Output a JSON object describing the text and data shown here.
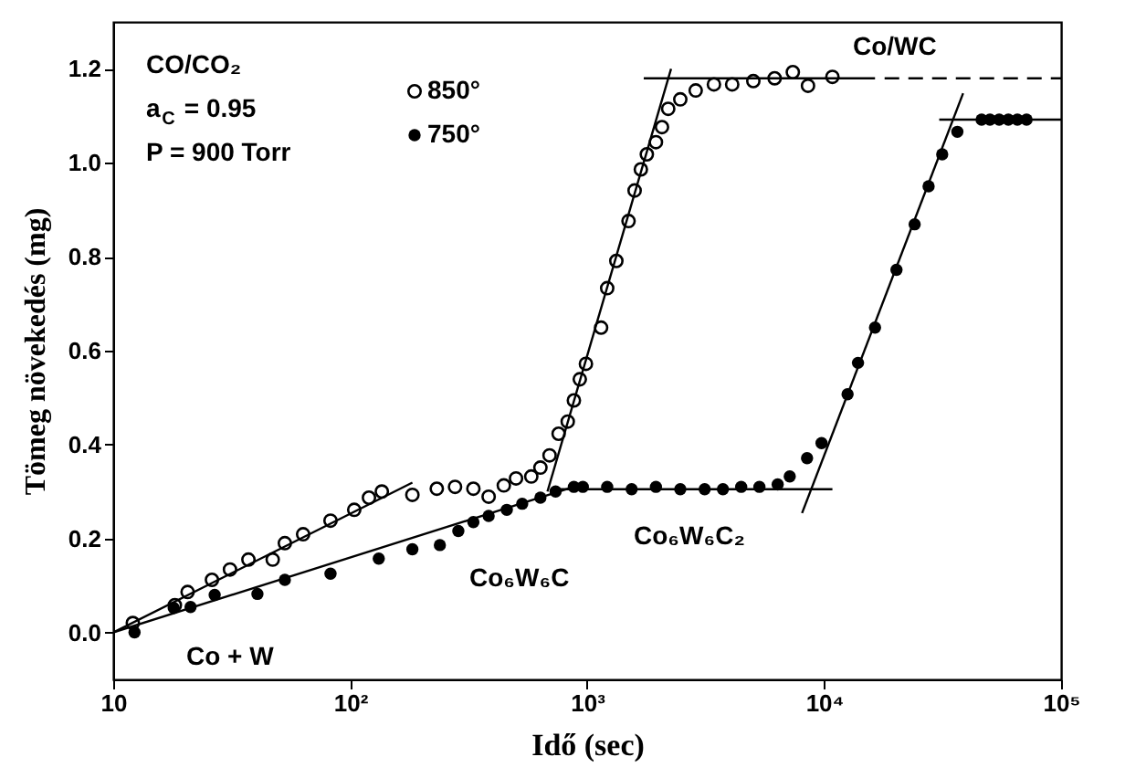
{
  "chart_data": {
    "type": "scatter",
    "xlabel": "Idő (sec)",
    "ylabel": "Tömeg növekedés (mg)",
    "log": "x",
    "grid": false,
    "legend": "top left",
    "xlim": [
      10,
      100000
    ],
    "xticks": [
      10,
      {
        "value": 100,
        "label": "10²"
      },
      {
        "value": 1000,
        "label": "10³"
      },
      {
        "value": 10000,
        "label": "10⁴"
      },
      {
        "value": 100000,
        "label": "10⁵"
      }
    ],
    "ylim": [
      -0.1,
      1.3
    ],
    "yticks": [
      {
        "value": 0,
        "label": "0.0"
      },
      {
        "value": 0.2,
        "label": "0.2"
      },
      {
        "value": 0.4,
        "label": "0.4"
      },
      {
        "value": 0.6,
        "label": "0.6"
      },
      {
        "value": 0.8,
        "label": "0.8"
      },
      {
        "value": 1.0,
        "label": "1.0"
      },
      {
        "value": 1.2,
        "label": "1.2"
      }
    ],
    "annotations": [
      "CO/CO₂",
      "a$_{C}$ = 0.95",
      "P = 900 Torr",
      "Co/WC",
      "Co₆W₆C₂",
      "Co₆W₆C",
      "Co + W"
    ],
    "series": [
      {
        "name": "850°",
        "marker": "circle",
        "color": "#000000",
        "x": [
          12.1,
          18.2,
          20.6,
          26.1,
          31.1,
          37.2,
          47.1,
          53,
          63.3,
          82.6,
          104,
          120,
          136,
          183,
          232,
          277,
          331,
          384,
          445,
          501,
          581,
          635,
          694,
          758,
          828,
          879,
          931,
          988,
          1145,
          1215,
          1328,
          1495,
          1586,
          1685,
          1786,
          1951,
          2069,
          2198,
          2472,
          2871,
          3428,
          4093,
          5027,
          6183,
          7379,
          8551,
          10840
        ],
        "values": [
          0.02,
          0.058,
          0.086,
          0.112,
          0.134,
          0.155,
          0.155,
          0.19,
          0.209,
          0.238,
          0.261,
          0.287,
          0.3,
          0.293,
          0.306,
          0.31,
          0.306,
          0.289,
          0.313,
          0.328,
          0.332,
          0.351,
          0.377,
          0.423,
          0.449,
          0.494,
          0.539,
          0.572,
          0.649,
          0.733,
          0.791,
          0.876,
          0.941,
          0.986,
          1.018,
          1.044,
          1.076,
          1.115,
          1.135,
          1.154,
          1.167,
          1.167,
          1.174,
          1.18,
          1.193,
          1.164,
          1.183
        ]
      },
      {
        "name": "750°",
        "marker": "circle",
        "color": "#000000",
        "x": [
          12.3,
          18.0,
          21.2,
          26.8,
          40.6,
          53,
          82.6,
          132,
          183,
          239,
          286,
          331,
          384,
          458,
          532,
          635,
          736,
          879,
          959,
          1215,
          1541,
          1951,
          2472,
          3133,
          3741,
          4467,
          5333,
          6368,
          7161,
          8472,
          9753,
          12560,
          13900,
          16400,
          20200,
          24100,
          27600,
          31500,
          36500,
          46200,
          50100,
          54800,
          59900,
          65400,
          71500
        ],
        "values": [
          0.0,
          0.052,
          0.054,
          0.08,
          0.082,
          0.112,
          0.125,
          0.157,
          0.177,
          0.186,
          0.216,
          0.235,
          0.248,
          0.261,
          0.274,
          0.287,
          0.3,
          0.31,
          0.31,
          0.31,
          0.305,
          0.31,
          0.305,
          0.305,
          0.305,
          0.31,
          0.31,
          0.315,
          0.332,
          0.371,
          0.403,
          0.507,
          0.574,
          0.649,
          0.772,
          0.869,
          0.95,
          1.018,
          1.066,
          1.092,
          1.092,
          1.092,
          1.092,
          1.092,
          1.092
        ]
      },
      {
        "type": "line",
        "line_style": "solid",
        "color": "#000000",
        "x": [
          10,
          183
        ],
        "values": [
          0,
          0.319
        ]
      },
      {
        "type": "line",
        "line_style": "solid",
        "color": "#000000",
        "x": [
          680,
          2260
        ],
        "values": [
          0.3,
          1.2
        ]
      },
      {
        "type": "line",
        "line_style": "solid",
        "color": "#000000",
        "x": [
          1733,
          16400
        ],
        "values": [
          1.18,
          1.18
        ]
      },
      {
        "type": "line",
        "line_style": "dashed",
        "color": "#000000",
        "x": [
          18000,
          100000
        ],
        "values": [
          1.18,
          1.18
        ]
      },
      {
        "type": "line",
        "line_style": "solid",
        "color": "#000000",
        "x": [
          10,
          879
        ],
        "values": [
          0,
          0.31
        ]
      },
      {
        "type": "line",
        "line_style": "solid",
        "color": "#000000",
        "x": [
          700,
          10840
        ],
        "values": [
          0.305,
          0.305
        ]
      },
      {
        "type": "line",
        "line_style": "solid",
        "color": "#000000",
        "x": [
          8070,
          38600
        ],
        "values": [
          0.254,
          1.148
        ]
      },
      {
        "type": "line",
        "line_style": "solid",
        "color": "#000000",
        "x": [
          30600,
          100000
        ],
        "values": [
          1.092,
          1.092
        ]
      }
    ]
  }
}
